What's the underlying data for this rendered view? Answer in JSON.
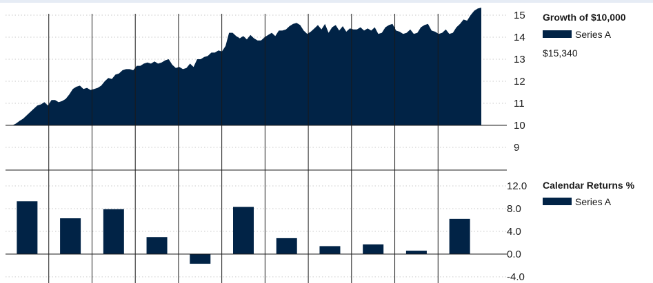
{
  "colors": {
    "series": "#012346",
    "grid": "#c8c8c8",
    "rule": "#1a1a1a"
  },
  "chart_data": [
    {
      "type": "area",
      "title": "Growth of $10,000",
      "legend": [
        "Series A"
      ],
      "series": [
        {
          "name": "Series A"
        }
      ],
      "end_value_label": "$15,340",
      "y_ticks": [
        "15",
        "14",
        "13",
        "12",
        "11",
        "10",
        "9"
      ],
      "ylim": [
        8.5,
        15.4
      ],
      "units": "thousands of dollars",
      "x": [
        0,
        1,
        2,
        3,
        4,
        5,
        6,
        7,
        8,
        9,
        10,
        11,
        12,
        13,
        14,
        15,
        16,
        17,
        18,
        19,
        20,
        21,
        22,
        23,
        24,
        25,
        26,
        27,
        28,
        29,
        30,
        31,
        32,
        33,
        34,
        35,
        36,
        37,
        38,
        39,
        40,
        41,
        42,
        43,
        44,
        45,
        46,
        47,
        48,
        49,
        50,
        51,
        52,
        53,
        54,
        55,
        56,
        57,
        58,
        59,
        60,
        61,
        62,
        63,
        64,
        65,
        66,
        67,
        68,
        69,
        70,
        71,
        72,
        73,
        74,
        75,
        76,
        77,
        78,
        79,
        80,
        81,
        82,
        83,
        84,
        85,
        86,
        87,
        88,
        89,
        90,
        91,
        92,
        93,
        94,
        95,
        96,
        97,
        98,
        99,
        100,
        101,
        102,
        103,
        104,
        105,
        106,
        107,
        108,
        109,
        110,
        111,
        112,
        113,
        114,
        115,
        116,
        117,
        118,
        119,
        120,
        121,
        122,
        123,
        124,
        125,
        126,
        127,
        128,
        129,
        130,
        131,
        132
      ],
      "values": [
        10.0,
        10.08,
        10.2,
        10.3,
        10.45,
        10.6,
        10.75,
        10.9,
        10.95,
        11.05,
        10.9,
        11.15,
        11.15,
        11.05,
        11.1,
        11.2,
        11.4,
        11.65,
        11.75,
        11.8,
        11.65,
        11.7,
        11.6,
        11.65,
        11.7,
        11.8,
        12.0,
        12.15,
        12.1,
        12.3,
        12.35,
        12.5,
        12.55,
        12.55,
        12.5,
        12.7,
        12.7,
        12.8,
        12.85,
        12.8,
        12.9,
        12.8,
        12.85,
        12.95,
        13.0,
        12.75,
        12.6,
        12.65,
        12.55,
        12.6,
        12.8,
        12.65,
        13.0,
        13.0,
        13.1,
        13.15,
        13.3,
        13.3,
        13.4,
        13.35,
        13.6,
        14.2,
        14.2,
        14.05,
        13.95,
        14.05,
        13.9,
        14.1,
        13.95,
        13.85,
        13.85,
        14.0,
        14.1,
        14.2,
        14.05,
        14.3,
        14.3,
        14.35,
        14.5,
        14.6,
        14.65,
        14.55,
        14.3,
        14.15,
        14.25,
        14.4,
        14.55,
        14.35,
        14.6,
        14.2,
        14.45,
        14.55,
        14.3,
        14.5,
        14.25,
        14.4,
        14.35,
        14.35,
        14.45,
        14.3,
        14.4,
        14.3,
        14.45,
        14.15,
        14.2,
        14.45,
        14.55,
        14.6,
        14.3,
        14.25,
        14.15,
        14.2,
        14.35,
        14.15,
        14.2,
        14.45,
        14.55,
        14.6,
        14.3,
        14.25,
        14.15,
        14.2,
        14.35,
        14.15,
        14.2,
        14.45,
        14.6,
        14.8,
        14.75,
        15.0,
        15.2,
        15.3,
        15.34
      ]
    },
    {
      "type": "bar",
      "title": "Calendar Returns %",
      "legend": [
        "Series A"
      ],
      "series": [
        {
          "name": "Series A"
        }
      ],
      "y_ticks": [
        "12.0",
        "8.0",
        "4.0",
        "0.0",
        "-4.0"
      ],
      "ylim": [
        -4.0,
        12.0
      ],
      "values": [
        9.3,
        6.3,
        7.9,
        3.0,
        -1.7,
        8.3,
        2.8,
        1.4,
        1.7,
        0.6,
        6.2
      ]
    }
  ]
}
